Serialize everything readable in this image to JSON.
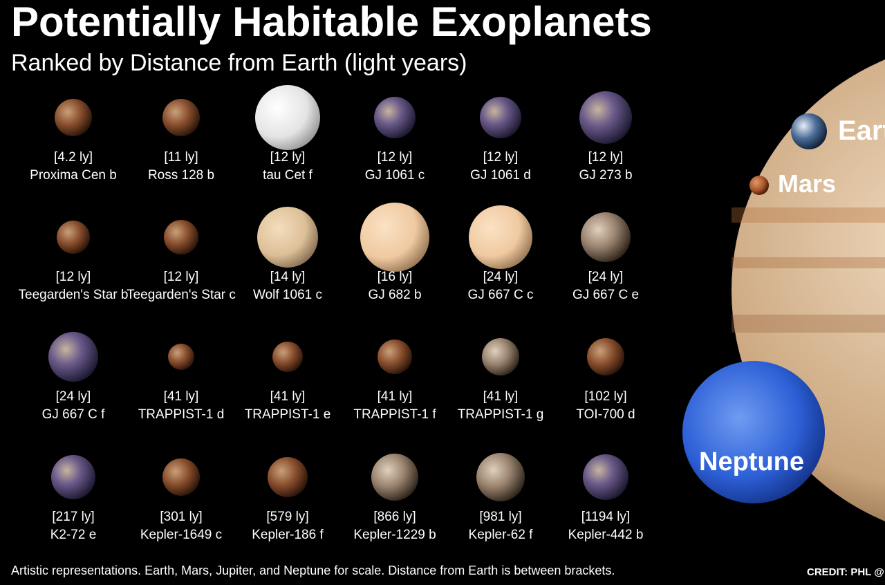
{
  "header": {
    "title": "Potentially Habitable Exoplanets",
    "subtitle": "Ranked by Distance from Earth (light years)"
  },
  "planets": [
    {
      "distance": "[4.2 ly]",
      "name": "Proxima Cen b"
    },
    {
      "distance": "[11 ly]",
      "name": "Ross 128 b"
    },
    {
      "distance": "[12 ly]",
      "name": "tau Cet f"
    },
    {
      "distance": "[12 ly]",
      "name": "GJ 1061 c"
    },
    {
      "distance": "[12 ly]",
      "name": "GJ 1061 d"
    },
    {
      "distance": "[12 ly]",
      "name": "GJ 273 b"
    },
    {
      "distance": "[12 ly]",
      "name": "Teegarden's Star b"
    },
    {
      "distance": "[12 ly]",
      "name": "Teegarden's Star c"
    },
    {
      "distance": "[14 ly]",
      "name": "Wolf 1061 c"
    },
    {
      "distance": "[16 ly]",
      "name": "GJ 682 b"
    },
    {
      "distance": "[24 ly]",
      "name": "GJ 667 C c"
    },
    {
      "distance": "[24 ly]",
      "name": "GJ 667 C e"
    },
    {
      "distance": "[24 ly]",
      "name": "GJ 667 C f"
    },
    {
      "distance": "[41 ly]",
      "name": "TRAPPIST-1 d"
    },
    {
      "distance": "[41 ly]",
      "name": "TRAPPIST-1 e"
    },
    {
      "distance": "[41 ly]",
      "name": "TRAPPIST-1 f"
    },
    {
      "distance": "[41 ly]",
      "name": "TRAPPIST-1 g"
    },
    {
      "distance": "[102 ly]",
      "name": "TOI-700 d"
    },
    {
      "distance": "[217 ly]",
      "name": "K2-72 e"
    },
    {
      "distance": "[301 ly]",
      "name": "Kepler-1649 c"
    },
    {
      "distance": "[579 ly]",
      "name": "Kepler-186 f"
    },
    {
      "distance": "[866 ly]",
      "name": "Kepler-1229 b"
    },
    {
      "distance": "[981 ly]",
      "name": "Kepler-62 f"
    },
    {
      "distance": "[1194 ly]",
      "name": "Kepler-442 b"
    }
  ],
  "scale_planets": {
    "earth": "Eart",
    "mars": "Mars",
    "neptune": "Neptune"
  },
  "footer": {
    "note": "Artistic representations. Earth, Mars, Jupiter, and Neptune for scale. Distance from Earth is between brackets.",
    "credit": "CREDIT: PHL @ U"
  }
}
